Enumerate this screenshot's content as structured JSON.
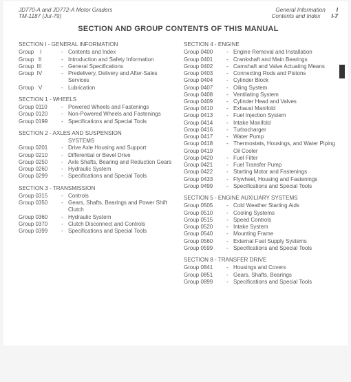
{
  "header": {
    "left_line1": "JD770-A and JD772-A Motor Graders",
    "left_line2": "TM-1187   (Jul-79)",
    "right_line1": "General Information",
    "right_line2_a": "Contents and Index",
    "right_line2_b": "I-7",
    "right_tab": "I"
  },
  "title": "SECTION AND GROUP CONTENTS OF THIS MANUAL",
  "left_col": [
    {
      "type": "head",
      "text": "SECTION I - GENERAL INFORMATION"
    },
    {
      "type": "row",
      "label": "Group    I",
      "sep": "-",
      "text": "Contents and Index"
    },
    {
      "type": "row",
      "label": "Group   II",
      "sep": "-",
      "text": "Introduction and Safety Information"
    },
    {
      "type": "row",
      "label": "Group  III",
      "sep": "-",
      "text": "General Specifications"
    },
    {
      "type": "row",
      "label": "Group  IV",
      "sep": "-",
      "text": "Predelivery, Delivery and After-Sales Services"
    },
    {
      "type": "row",
      "label": "Group   V",
      "sep": "-",
      "text": "Lubrication"
    },
    {
      "type": "head",
      "text": "SECTION 1 - WHEELS"
    },
    {
      "type": "row",
      "label": "Group 0110",
      "sep": "-",
      "text": "Powered Wheels and Fastenings"
    },
    {
      "type": "row",
      "label": "Group 0120",
      "sep": "-",
      "text": "Non-Powered Wheels and Fastenings"
    },
    {
      "type": "row",
      "label": "Group 0199",
      "sep": "-",
      "text": "Specifications and Special Tools"
    },
    {
      "type": "head",
      "text": "SECTION 2 - AXLES AND SUSPENSION"
    },
    {
      "type": "head2",
      "text": "SYSTEMS"
    },
    {
      "type": "row",
      "label": "Group 0201",
      "sep": "-",
      "text": "Drive Axle Housing and Support"
    },
    {
      "type": "row",
      "label": "Group 0210",
      "sep": "-",
      "text": "Differential or Bevel Drive"
    },
    {
      "type": "row",
      "label": "Group 0250",
      "sep": "-",
      "text": "Axle Shafts, Bearing and Reduction Gears"
    },
    {
      "type": "row",
      "label": "Group 0260",
      "sep": "-",
      "text": "Hydraulic System"
    },
    {
      "type": "row",
      "label": "Group 0299",
      "sep": "-",
      "text": "Specifications and Special Tools"
    },
    {
      "type": "head",
      "text": "SECTION 3 - TRANSMISSION"
    },
    {
      "type": "row",
      "label": "Group 0315",
      "sep": "-",
      "text": "Controls"
    },
    {
      "type": "row",
      "label": "Group 0350",
      "sep": "-",
      "text": "Gears, Shafts, Bearings and Power Shift Clutch"
    },
    {
      "type": "row",
      "label": "Group 0360",
      "sep": "-",
      "text": "Hydraulic System"
    },
    {
      "type": "row",
      "label": "Group 0370",
      "sep": "-",
      "text": "Clutch Disconnect and Controls"
    },
    {
      "type": "row",
      "label": "Group 0399",
      "sep": "-",
      "text": "Specifications and Special Tools"
    }
  ],
  "right_col": [
    {
      "type": "head",
      "text": "SECTION 4 - ENGINE"
    },
    {
      "type": "row",
      "label": "Group 0400",
      "sep": "-",
      "text": "Engine Removal and Installation"
    },
    {
      "type": "row",
      "label": "Group 0401",
      "sep": "-",
      "text": "Crankshaft and Main Bearings"
    },
    {
      "type": "row",
      "label": "Group 0402",
      "sep": "-",
      "text": "Camshaft and Valve Actuating Means"
    },
    {
      "type": "row",
      "label": "Group 0403",
      "sep": "-",
      "text": "Connecting Rods and Pistons"
    },
    {
      "type": "row",
      "label": "Group 0404",
      "sep": "-",
      "text": "Cylinder Block"
    },
    {
      "type": "row",
      "label": "Group 0407",
      "sep": "-",
      "text": "Oiling System"
    },
    {
      "type": "row",
      "label": "Group 0408",
      "sep": "-",
      "text": "Ventilating System"
    },
    {
      "type": "row",
      "label": "Group 0409",
      "sep": "-",
      "text": "Cylinder Head and Valves"
    },
    {
      "type": "row",
      "label": "Group 0410",
      "sep": "-",
      "text": "Exhaust Manifold"
    },
    {
      "type": "row",
      "label": "Group 0413",
      "sep": "-",
      "text": "Fuel Injection System"
    },
    {
      "type": "row",
      "label": "Group 0414",
      "sep": "-",
      "text": "Intake Manifold"
    },
    {
      "type": "row",
      "label": "Group 0416",
      "sep": "-",
      "text": "Turbocharger"
    },
    {
      "type": "row",
      "label": "Group 0417",
      "sep": "-",
      "text": "Water Pump"
    },
    {
      "type": "row",
      "label": "Group 0418",
      "sep": "-",
      "text": "Thermostats, Housings, and Water Piping"
    },
    {
      "type": "row",
      "label": "Group 0419",
      "sep": "",
      "text": "Oil Cooler"
    },
    {
      "type": "row",
      "label": "Group 0420",
      "sep": "-",
      "text": "Fuel Filter"
    },
    {
      "type": "row",
      "label": "Group 0421",
      "sep": "-",
      "text": "Fuel Transfer Pump"
    },
    {
      "type": "row",
      "label": "Group 0422",
      "sep": "-",
      "text": "Starting Motor and Fastenings"
    },
    {
      "type": "row",
      "label": "Group 0433",
      "sep": "-",
      "text": "Flywheel, Housing and Fastenings"
    },
    {
      "type": "row",
      "label": "Group 0499",
      "sep": "-",
      "text": "Specifications and Special Tools"
    },
    {
      "type": "head",
      "text": "SECTION 5 - ENGINE AUXILIARY SYSTEMS"
    },
    {
      "type": "row",
      "label": "Group 0505",
      "sep": "-",
      "text": "Cold Weather Starting Aids"
    },
    {
      "type": "row",
      "label": "Group 0510",
      "sep": "-",
      "text": "Cooling Systems"
    },
    {
      "type": "row",
      "label": "Group 0515",
      "sep": "-",
      "text": "Speed Controls"
    },
    {
      "type": "row",
      "label": "Group 0520",
      "sep": "-",
      "text": "Intake System"
    },
    {
      "type": "row",
      "label": "Group 0540",
      "sep": "-",
      "text": "Mounting Frame"
    },
    {
      "type": "row",
      "label": "Group 0560",
      "sep": "-",
      "text": "External Fuel Supply Systems"
    },
    {
      "type": "row",
      "label": "Group 0599",
      "sep": "-",
      "text": "Specifications and Special Tools"
    },
    {
      "type": "head",
      "text": "SECTION 8 - TRANSFER DRIVE"
    },
    {
      "type": "row",
      "label": "Group 0841",
      "sep": "-",
      "text": "Housings and Covers"
    },
    {
      "type": "row",
      "label": "Group 0851",
      "sep": "-",
      "text": "Gears, Shafts, Bearings"
    },
    {
      "type": "row",
      "label": "Group 0899",
      "sep": "-",
      "text": "Specifications and Special Tools"
    }
  ]
}
